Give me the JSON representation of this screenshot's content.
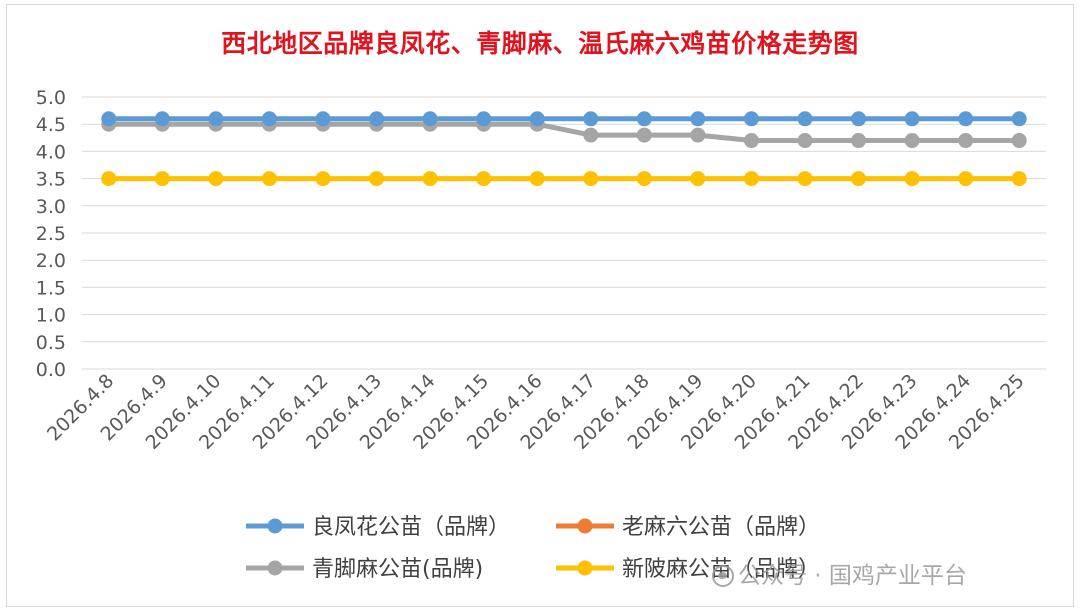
{
  "chart_data": {
    "type": "line",
    "title": "西北地区品牌良凤花、青脚麻、温氏麻六鸡苗价格走势图",
    "xlabel": "",
    "ylabel": "",
    "ylim": [
      0,
      5
    ],
    "ytick_step": 0.5,
    "yticks": [
      "0.0",
      "0.5",
      "1.0",
      "1.5",
      "2.0",
      "2.5",
      "3.0",
      "3.5",
      "4.0",
      "4.5",
      "5.0"
    ],
    "grid": true,
    "legend_position": "bottom",
    "categories": [
      "2026.4.8",
      "2026.4.9",
      "2026.4.10",
      "2026.4.11",
      "2026.4.12",
      "2026.4.13",
      "2026.4.14",
      "2026.4.15",
      "2026.4.16",
      "2026.4.17",
      "2026.4.18",
      "2026.4.19",
      "2026.4.20",
      "2026.4.21",
      "2026.4.22",
      "2026.4.23",
      "2026.4.24",
      "2026.4.25"
    ],
    "series": [
      {
        "name": "良凤花公苗（品牌）",
        "color": "#5b9bd5",
        "values": [
          4.6,
          4.6,
          4.6,
          4.6,
          4.6,
          4.6,
          4.6,
          4.6,
          4.6,
          4.6,
          4.6,
          4.6,
          4.6,
          4.6,
          4.6,
          4.6,
          4.6,
          4.6
        ]
      },
      {
        "name": "老麻六公苗（品牌）",
        "color": "#ed7d31",
        "values": [
          null,
          null,
          null,
          null,
          null,
          null,
          null,
          null,
          null,
          null,
          null,
          null,
          null,
          null,
          null,
          null,
          null,
          null
        ]
      },
      {
        "name": "青脚麻公苗(品牌)",
        "color": "#a5a5a5",
        "values": [
          4.5,
          4.5,
          4.5,
          4.5,
          4.5,
          4.5,
          4.5,
          4.5,
          4.5,
          4.3,
          4.3,
          4.3,
          4.2,
          4.2,
          4.2,
          4.2,
          4.2,
          4.2
        ]
      },
      {
        "name": "新陂麻公苗（品牌）",
        "color": "#ffc000",
        "values": [
          3.5,
          3.5,
          3.5,
          3.5,
          3.5,
          3.5,
          3.5,
          3.5,
          3.5,
          3.5,
          3.5,
          3.5,
          3.5,
          3.5,
          3.5,
          3.5,
          3.5,
          3.5
        ]
      }
    ],
    "draw_order": [
      2,
      0,
      3
    ]
  },
  "watermark": {
    "text": "公众号 · 国鸡产业平台"
  }
}
